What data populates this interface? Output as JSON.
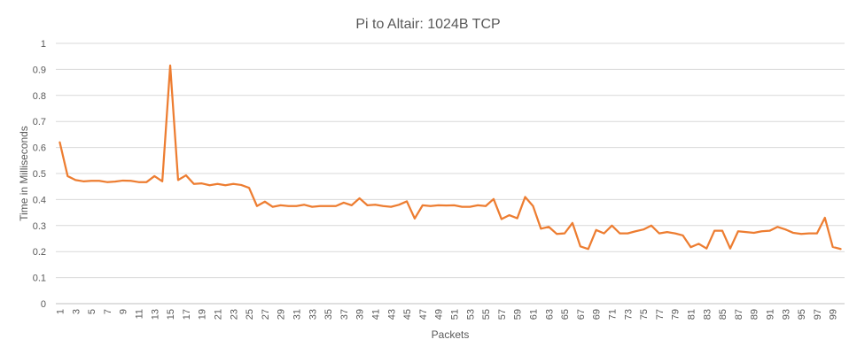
{
  "chart_data": {
    "type": "line",
    "title": "Pi to Altair: 1024B TCP",
    "xlabel": "Packets",
    "ylabel": "Time in Milliseconds",
    "ylim": [
      0,
      1
    ],
    "yticks": [
      0,
      0.1,
      0.2,
      0.3,
      0.4,
      0.5,
      0.6,
      0.7,
      0.8,
      0.9,
      1
    ],
    "ytick_labels": [
      "0",
      "0.1",
      "0.2",
      "0.3",
      "0.4",
      "0.5",
      "0.6",
      "0.7",
      "0.8",
      "0.9",
      "1"
    ],
    "xtick_labels": [
      "1",
      "3",
      "5",
      "7",
      "9",
      "11",
      "13",
      "15",
      "17",
      "19",
      "21",
      "23",
      "25",
      "27",
      "29",
      "31",
      "33",
      "35",
      "37",
      "39",
      "41",
      "43",
      "45",
      "47",
      "49",
      "51",
      "53",
      "55",
      "57",
      "59",
      "61",
      "63",
      "65",
      "67",
      "69",
      "71",
      "73",
      "75",
      "77",
      "79",
      "81",
      "83",
      "85",
      "87",
      "89",
      "91",
      "93",
      "95",
      "97",
      "99"
    ],
    "grid": true,
    "legend": "none",
    "series": [
      {
        "color": "#ed7d31",
        "x": [
          1,
          2,
          3,
          4,
          5,
          6,
          7,
          8,
          9,
          10,
          11,
          12,
          13,
          14,
          15,
          16,
          17,
          18,
          19,
          20,
          21,
          22,
          23,
          24,
          25,
          26,
          27,
          28,
          29,
          30,
          31,
          32,
          33,
          34,
          35,
          36,
          37,
          38,
          39,
          40,
          41,
          42,
          43,
          44,
          45,
          46,
          47,
          48,
          49,
          50,
          51,
          52,
          53,
          54,
          55,
          56,
          57,
          58,
          59,
          60,
          61,
          62,
          63,
          64,
          65,
          66,
          67,
          68,
          69,
          70,
          71,
          72,
          73,
          74,
          75,
          76,
          77,
          78,
          79,
          80,
          81,
          82,
          83,
          84,
          85,
          86,
          87,
          88,
          89,
          90,
          91,
          92,
          93,
          94,
          95,
          96,
          97,
          98,
          99,
          100
        ],
        "values": [
          0.62,
          0.49,
          0.475,
          0.47,
          0.472,
          0.472,
          0.467,
          0.469,
          0.473,
          0.472,
          0.467,
          0.467,
          0.49,
          0.47,
          0.915,
          0.475,
          0.493,
          0.46,
          0.462,
          0.455,
          0.46,
          0.455,
          0.46,
          0.456,
          0.445,
          0.375,
          0.392,
          0.372,
          0.378,
          0.375,
          0.375,
          0.38,
          0.372,
          0.375,
          0.375,
          0.375,
          0.388,
          0.378,
          0.405,
          0.378,
          0.38,
          0.375,
          0.372,
          0.38,
          0.393,
          0.327,
          0.378,
          0.375,
          0.378,
          0.377,
          0.378,
          0.372,
          0.372,
          0.378,
          0.375,
          0.402,
          0.325,
          0.34,
          0.328,
          0.41,
          0.375,
          0.288,
          0.295,
          0.268,
          0.27,
          0.31,
          0.22,
          0.21,
          0.283,
          0.27,
          0.3,
          0.27,
          0.27,
          0.278,
          0.285,
          0.3,
          0.27,
          0.275,
          0.27,
          0.262,
          0.217,
          0.23,
          0.212,
          0.28,
          0.28,
          0.212,
          0.278,
          0.275,
          0.272,
          0.278,
          0.28,
          0.295,
          0.285,
          0.272,
          0.268,
          0.27,
          0.27,
          0.33,
          0.218,
          0.21
        ]
      }
    ]
  }
}
